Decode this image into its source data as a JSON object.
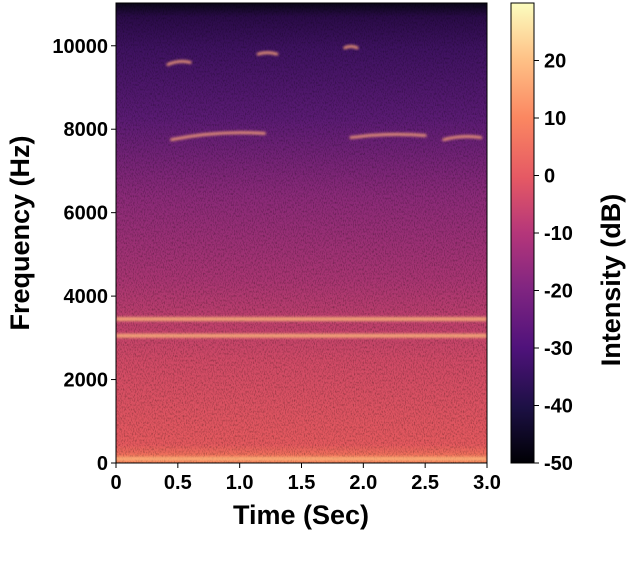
{
  "chart_data": {
    "type": "heatmap",
    "subtype": "spectrogram",
    "title": "",
    "xlabel": "Time (Sec)",
    "ylabel": "Frequency (Hz)",
    "xlim": [
      0,
      3.0
    ],
    "ylim": [
      0,
      11025
    ],
    "x_ticks": [
      0,
      0.5,
      1.0,
      1.5,
      2.0,
      2.5,
      3.0
    ],
    "x_tick_labels": [
      "0",
      "0.5",
      "1.0",
      "1.5",
      "2.0",
      "2.5",
      "3.0"
    ],
    "y_ticks": [
      0,
      2000,
      4000,
      6000,
      8000,
      10000
    ],
    "y_tick_labels": [
      "0",
      "2000",
      "4000",
      "6000",
      "8000",
      "10000"
    ],
    "colormap": "magma",
    "colorbar": {
      "label": "Intensity (dB)",
      "range": [
        -50,
        30
      ],
      "ticks": [
        20,
        10,
        0,
        -10,
        -20,
        -30,
        -40,
        -50
      ],
      "tick_labels": [
        "20",
        "10",
        "0",
        "-10",
        "-20",
        "-30",
        "-40",
        "-50"
      ]
    },
    "grid": false,
    "notable_features": {
      "bright_bands": [
        {
          "freq_hz": 100,
          "time": [
            0,
            3.0
          ]
        },
        {
          "freq_hz": 3050,
          "time": [
            0,
            3.0
          ]
        },
        {
          "freq_hz": 3450,
          "time": [
            0,
            3.0
          ]
        }
      ],
      "whistle_traces": [
        {
          "freq_hz": [
            7750,
            7900
          ],
          "time": [
            0.45,
            1.2
          ]
        },
        {
          "freq_hz": [
            7800,
            7850
          ],
          "time": [
            1.9,
            2.5
          ]
        },
        {
          "freq_hz": [
            7750,
            7800
          ],
          "time": [
            2.65,
            2.95
          ]
        },
        {
          "freq_hz": [
            9550,
            9600
          ],
          "time": [
            0.42,
            0.6
          ]
        },
        {
          "freq_hz": [
            9800,
            9800
          ],
          "time": [
            1.15,
            1.3
          ]
        },
        {
          "freq_hz": [
            9950,
            9950
          ],
          "time": [
            1.85,
            1.95
          ]
        }
      ]
    }
  }
}
